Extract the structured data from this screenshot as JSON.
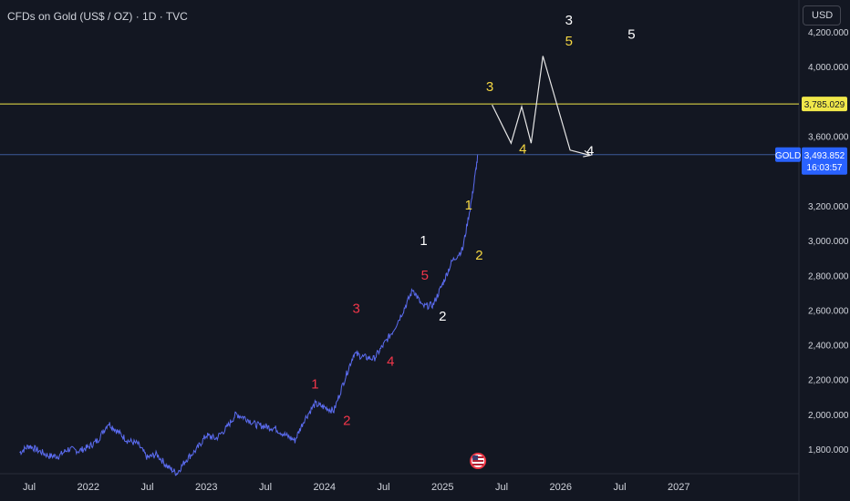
{
  "header": {
    "title": "CFDs on Gold (US$ / OZ) · 1D · TVC",
    "currency": "USD"
  },
  "colors": {
    "background": "#131722",
    "price_line": "#5b6cf0",
    "level_line": "#f0e74a",
    "current_line": "#3d5a99",
    "red_label": "#f2364a",
    "yellow_label": "#f5d742",
    "white_label": "#ffffff",
    "gold_tag": "#2962ff"
  },
  "chart_data": {
    "type": "line",
    "x_ticks": [
      "Jul",
      "2022",
      "Jul",
      "2023",
      "Jul",
      "2024",
      "Jul",
      "2025",
      "Jul",
      "2026",
      "Jul",
      "2027"
    ],
    "y_ticks": [
      "1,800.000",
      "2,000.000",
      "2,200.000",
      "2,400.000",
      "2,600.000",
      "2,800.000",
      "3,000.000",
      "3,200.000",
      "3,600.000",
      "4,000.000",
      "4,200.000"
    ],
    "ylim": [
      1700,
      4200
    ],
    "series": [
      {
        "x": [
          2021.42,
          2021.5,
          2021.58,
          2021.67,
          2021.75,
          2021.83,
          2021.92,
          2022.0,
          2022.08,
          2022.17,
          2022.25,
          2022.33,
          2022.42,
          2022.5,
          2022.58,
          2022.67,
          2022.75,
          2022.83,
          2022.92,
          2023.0,
          2023.08,
          2023.17,
          2023.25,
          2023.33,
          2023.42,
          2023.5,
          2023.58,
          2023.67,
          2023.75,
          2023.83,
          2023.92,
          2024.0,
          2024.08,
          2024.17,
          2024.25,
          2024.33,
          2024.42,
          2024.5,
          2024.58,
          2024.67,
          2024.75,
          2024.83,
          2024.92,
          2025.0,
          2025.08,
          2025.17,
          2025.25,
          2025.3
        ],
        "values": [
          1780,
          1820,
          1790,
          1760,
          1760,
          1800,
          1790,
          1810,
          1850,
          1950,
          1900,
          1850,
          1830,
          1750,
          1770,
          1700,
          1660,
          1740,
          1800,
          1880,
          1860,
          1920,
          2000,
          1980,
          1940,
          1930,
          1920,
          1880,
          1850,
          1970,
          2060,
          2040,
          2020,
          2200,
          2350,
          2330,
          2320,
          2400,
          2480,
          2600,
          2720,
          2620,
          2630,
          2750,
          2880,
          2950,
          3250,
          3494
        ]
      }
    ],
    "levels": [
      {
        "label": "3,785.029",
        "value": 3785.029
      },
      {
        "label": "3,493.852",
        "value": 3493.852,
        "name": "GOLD",
        "countdown": "16:03:57"
      }
    ],
    "projection": {
      "x": [
        2025.42,
        2025.58,
        2025.67,
        2025.75,
        2025.85,
        2026.08,
        2026.25
      ],
      "values": [
        3780,
        3560,
        3770,
        3560,
        4060,
        3520,
        3490
      ]
    },
    "wave_labels": [
      {
        "text": "1",
        "color": "red",
        "x": 2023.92,
        "y": 2150
      },
      {
        "text": "2",
        "color": "red",
        "x": 2024.19,
        "y": 1940
      },
      {
        "text": "3",
        "color": "red",
        "x": 2024.27,
        "y": 2585
      },
      {
        "text": "4",
        "color": "red",
        "x": 2024.56,
        "y": 2280
      },
      {
        "text": "5",
        "color": "red",
        "x": 2024.85,
        "y": 2775
      },
      {
        "text": "1",
        "color": "white",
        "x": 2024.84,
        "y": 2975
      },
      {
        "text": "2",
        "color": "white",
        "x": 2025.0,
        "y": 2540
      },
      {
        "text": "1",
        "color": "yellow",
        "x": 2025.22,
        "y": 3180
      },
      {
        "text": "2",
        "color": "yellow",
        "x": 2025.31,
        "y": 2890
      },
      {
        "text": "3",
        "color": "yellow",
        "x": 2025.4,
        "y": 3860
      },
      {
        "text": "4",
        "color": "yellow",
        "x": 2025.68,
        "y": 3500
      },
      {
        "text": "3",
        "color": "white",
        "x": 2026.07,
        "y": 4240
      },
      {
        "text": "5",
        "color": "yellow",
        "x": 2026.07,
        "y": 4120
      },
      {
        "text": "4",
        "color": "white",
        "x": 2026.25,
        "y": 3490
      },
      {
        "text": "5",
        "color": "white",
        "x": 2026.6,
        "y": 4160
      }
    ]
  }
}
